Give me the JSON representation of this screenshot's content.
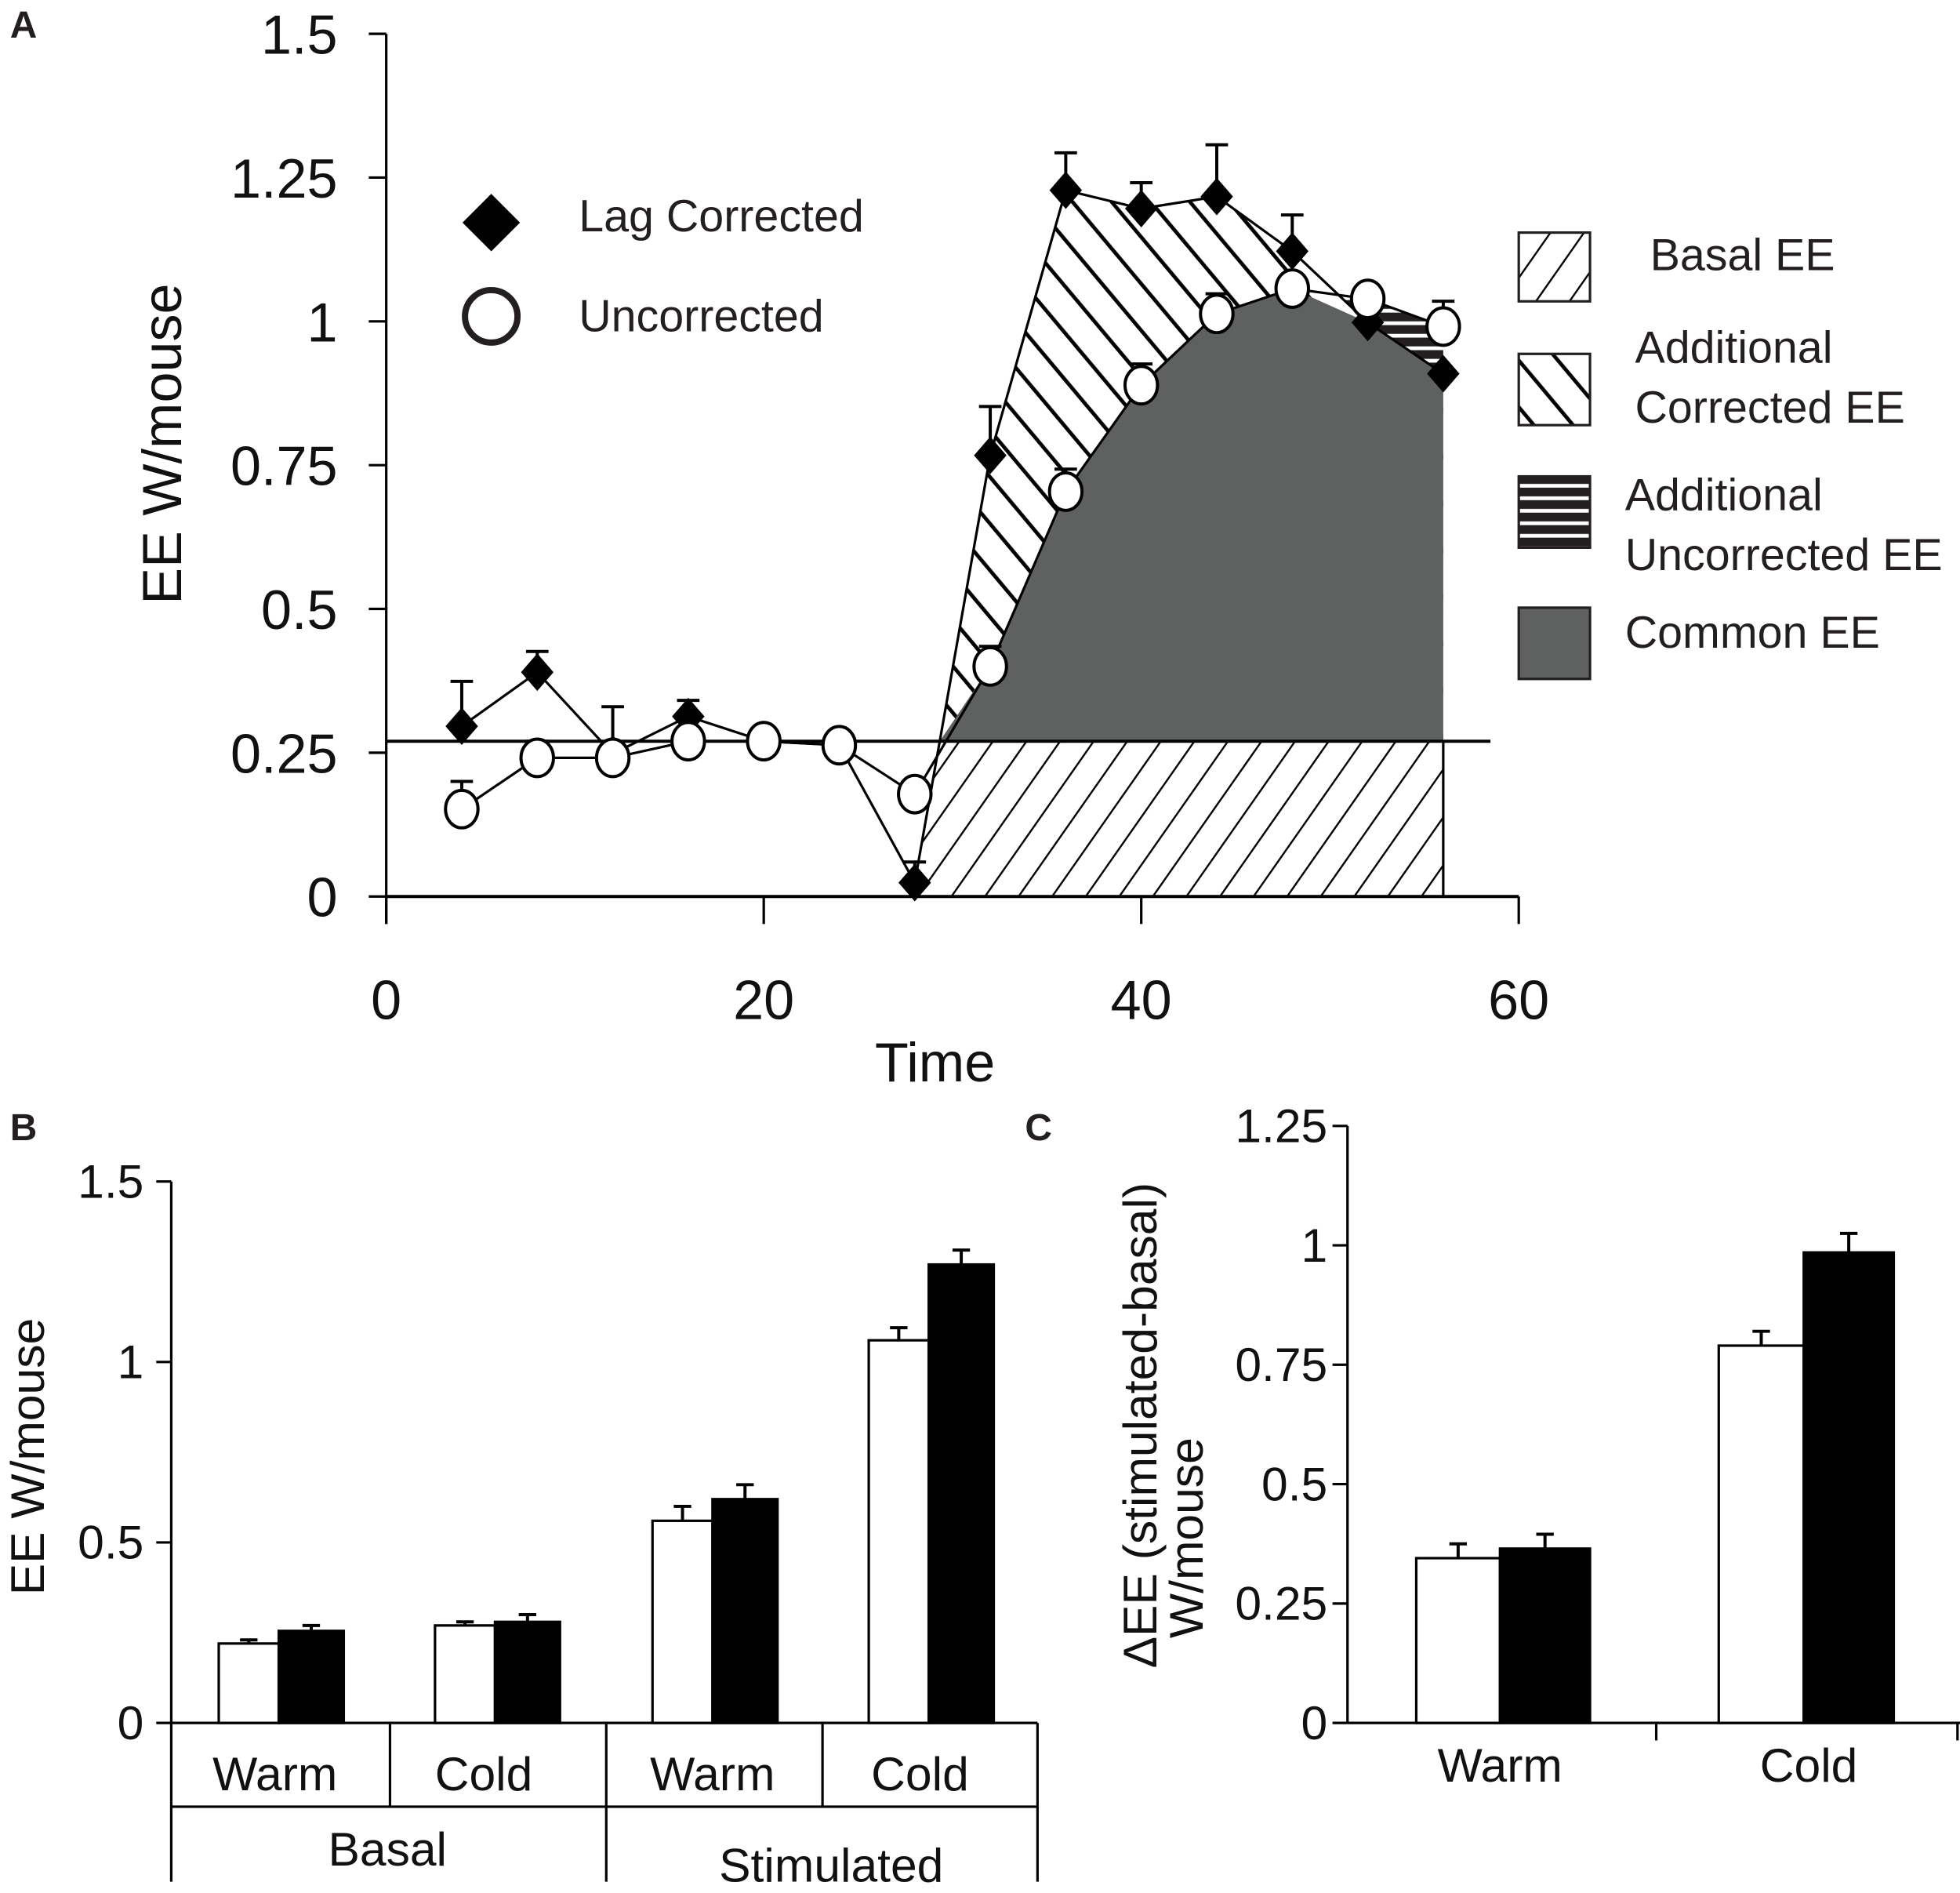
{
  "chart_data": [
    {
      "panel": "A",
      "type": "line",
      "xlabel": "Time",
      "ylabel": "EE W/mouse",
      "xlim": [
        0,
        60
      ],
      "ylim": [
        0,
        1.5
      ],
      "xticks": [
        "0",
        "20",
        "40",
        "60"
      ],
      "yticks": [
        "0",
        "0.25",
        "0.5",
        "0.75",
        "1",
        "1.25",
        "1.5"
      ],
      "basal_line": 0.27,
      "x": [
        4,
        8,
        12,
        16,
        20,
        24,
        28,
        32,
        36,
        40,
        44,
        48,
        52,
        56
      ],
      "series": [
        {
          "name": "Lag Corrected",
          "marker": "diamond",
          "values": [
            0.296,
            0.39,
            0.248,
            0.313,
            0.27,
            0.263,
            0.024,
            0.767,
            1.228,
            1.196,
            1.217,
            1.122,
            0.998,
            0.909
          ],
          "error_top": [
            0.374,
            0.426,
            0.33,
            0.341,
            null,
            null,
            0.06,
            0.852,
            1.293,
            1.241,
            1.307,
            1.185,
            null,
            null
          ]
        },
        {
          "name": "Uncorrected",
          "marker": "circle",
          "values": [
            0.152,
            0.241,
            0.241,
            0.27,
            0.27,
            0.263,
            0.178,
            0.4,
            0.704,
            0.889,
            1.013,
            1.057,
            1.039,
            0.991
          ],
          "error_top": [
            0.2,
            0.27,
            null,
            null,
            null,
            null,
            null,
            0.435,
            0.743,
            0.926,
            1.048,
            null,
            1.063,
            1.035
          ]
        }
      ],
      "area_legend": [
        {
          "lines": [
            "Basal EE"
          ],
          "pattern": "hatch-up"
        },
        {
          "lines": [
            "Additional",
            "Corrected EE"
          ],
          "pattern": "hatch-down"
        },
        {
          "lines": [
            "Additional",
            "Uncorrected EE"
          ],
          "pattern": "stripes"
        },
        {
          "lines": [
            "Common EE"
          ],
          "pattern": "solid"
        }
      ],
      "colors": {
        "common": "#5f6060",
        "line": "#000000"
      }
    },
    {
      "panel": "B",
      "type": "bar",
      "ylabel": "EE W/mouse",
      "ylim": [
        0,
        1.5
      ],
      "yticks": [
        "0",
        "0.5",
        "1",
        "1.5"
      ],
      "categories": [
        "Warm",
        "Cold",
        "Warm",
        "Cold"
      ],
      "groups": [
        "Basal",
        "Stimulated"
      ],
      "series": [
        {
          "name": "uncorrected (white)",
          "values": [
            0.22,
            0.27,
            0.56,
            1.06
          ],
          "error_top": [
            0.23,
            0.28,
            0.6,
            1.095
          ]
        },
        {
          "name": "lag corrected (black)",
          "values": [
            0.255,
            0.28,
            0.62,
            1.27
          ],
          "error_top": [
            0.27,
            0.3,
            0.66,
            1.31
          ]
        }
      ]
    },
    {
      "panel": "C",
      "type": "bar",
      "ylabel": [
        "ΔEE (stimulated-basal)",
        "W/mouse"
      ],
      "ylim": [
        0,
        1.25
      ],
      "yticks": [
        "0",
        "0.25",
        "0.5",
        "0.75",
        "1",
        "1.25"
      ],
      "categories": [
        "Warm",
        "Cold"
      ],
      "series": [
        {
          "name": "uncorrected (white)",
          "values": [
            0.345,
            0.79
          ],
          "error_top": [
            0.375,
            0.82
          ]
        },
        {
          "name": "lag corrected (black)",
          "values": [
            0.365,
            0.985
          ],
          "error_top": [
            0.395,
            1.025
          ]
        }
      ]
    }
  ]
}
